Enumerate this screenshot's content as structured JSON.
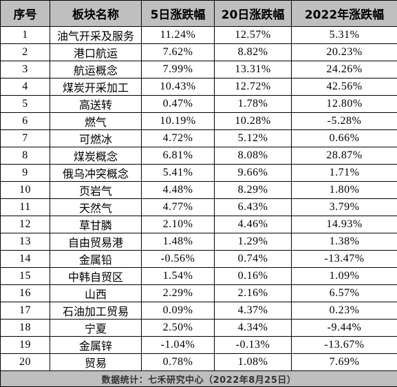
{
  "headers": [
    "序号",
    "板块名称",
    "5日涨跌幅",
    "20日涨跌幅",
    "2022年涨跌幅"
  ],
  "rows": [
    [
      "1",
      "油气开采及服务",
      "11.24%",
      "12.57%",
      "5.31%"
    ],
    [
      "2",
      "港口航运",
      "7.62%",
      "8.82%",
      "20.23%"
    ],
    [
      "3",
      "航运概念",
      "7.99%",
      "13.31%",
      "24.26%"
    ],
    [
      "4",
      "煤炭开采加工",
      "10.43%",
      "12.72%",
      "42.56%"
    ],
    [
      "5",
      "高送转",
      "0.47%",
      "1.78%",
      "12.80%"
    ],
    [
      "6",
      "燃气",
      "10.19%",
      "10.28%",
      "-5.28%"
    ],
    [
      "7",
      "可燃冰",
      "4.72%",
      "5.12%",
      "0.66%"
    ],
    [
      "8",
      "煤炭概念",
      "6.81%",
      "8.08%",
      "28.87%"
    ],
    [
      "9",
      "俄乌冲突概念",
      "5.41%",
      "9.66%",
      "1.71%"
    ],
    [
      "10",
      "页岩气",
      "4.48%",
      "8.29%",
      "1.80%"
    ],
    [
      "11",
      "天然气",
      "4.77%",
      "6.43%",
      "3.79%"
    ],
    [
      "12",
      "草甘膦",
      "2.10%",
      "4.46%",
      "14.93%"
    ],
    [
      "13",
      "自由贸易港",
      "1.48%",
      "1.29%",
      "1.38%"
    ],
    [
      "14",
      "金属铅",
      "-0.56%",
      "0.74%",
      "-13.47%"
    ],
    [
      "15",
      "中韩自贸区",
      "1.54%",
      "0.16%",
      "1.09%"
    ],
    [
      "16",
      "山西",
      "2.29%",
      "2.16%",
      "6.57%"
    ],
    [
      "17",
      "石油加工贸易",
      "0.09%",
      "4.37%",
      "0.23%"
    ],
    [
      "18",
      "宁夏",
      "2.50%",
      "4.34%",
      "-9.44%"
    ],
    [
      "19",
      "金属锌",
      "-1.04%",
      "-0.13%",
      "-13.67%"
    ],
    [
      "20",
      "贸易",
      "0.78%",
      "1.08%",
      "7.69%"
    ]
  ],
  "footer": "数据统计：七禾研究中心（2022年8月25日）",
  "colors": {
    "header_bg": "#bfbfbf",
    "footer_bg": "#bfbfbf",
    "grid": "#000000"
  }
}
